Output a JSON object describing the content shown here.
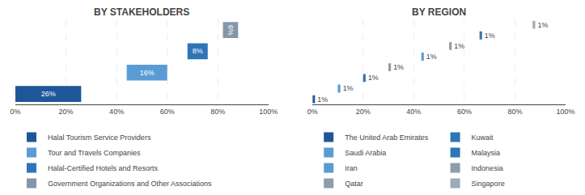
{
  "chart_data": [
    {
      "type": "bar",
      "orientation": "horizontal",
      "title": "BY STAKEHOLDERS",
      "categories": [
        "Halal Tourism Service Providers",
        "Tour and Travels Companies",
        "Halal-Certified Hotels and Resorts",
        "Government Organizations and Other Associations"
      ],
      "values": [
        26,
        16,
        8,
        6
      ],
      "base": [
        0,
        44,
        68,
        82
      ],
      "colors": [
        "#1e5799",
        "#5b9bd5",
        "#2e75b6",
        "#8496a9"
      ],
      "data_labels": true,
      "value_labels": [
        "26%",
        "16%",
        "8%",
        "6%"
      ],
      "legend_entries": [
        "Halal Tourism Service Providers",
        "Tour and Travels Companies",
        "Halal-Certified Hotels and Resorts",
        "Government Organizations and Other Associations"
      ],
      "legend": "bottom",
      "xlim": [
        0,
        100
      ],
      "xticks": [
        {
          "value": 0,
          "label": "0%"
        },
        {
          "value": 20,
          "label": "20%"
        },
        {
          "value": 40,
          "label": "40%"
        },
        {
          "value": 60,
          "label": "60%"
        },
        {
          "value": 80,
          "label": "80%"
        },
        {
          "value": 100,
          "label": "100%"
        }
      ],
      "grid": true,
      "tick_labels": "x"
    },
    {
      "type": "bar",
      "orientation": "horizontal",
      "title": "BY REGION",
      "categories": [
        "The United Arab Emirates",
        "Iran",
        "Kuwait",
        "Indonesia",
        "Saudi Arabia",
        "Qatar",
        "Malaysia",
        "Singapore"
      ],
      "values": [
        1,
        1,
        1,
        1,
        1,
        1,
        1,
        1
      ],
      "base": [
        0,
        10,
        20,
        30,
        43,
        54,
        66,
        87
      ],
      "colors": [
        "#1e5799",
        "#5b9bd5",
        "#2e75b6",
        "#8c9dab",
        "#5b9bd5",
        "#8c9dab",
        "#2e75b6",
        "#9aabb8"
      ],
      "data_labels": true,
      "value_labels": [
        "1%",
        "1%",
        "1%",
        "1%",
        "1%",
        "1%",
        "1%",
        "1%"
      ],
      "legend_entries": [
        "The United Arab Emirates",
        "Saudi Arabia",
        "Iran",
        "Qatar",
        "Kuwait",
        "Malaysia",
        "Indonesia",
        "Singapore"
      ],
      "legend": "bottom",
      "xlim": [
        0,
        100
      ],
      "xticks": [
        {
          "value": 0,
          "label": "0%"
        },
        {
          "value": 20,
          "label": "20%"
        },
        {
          "value": 40,
          "label": "40%"
        },
        {
          "value": 60,
          "label": "60%"
        },
        {
          "value": 80,
          "label": "80%"
        },
        {
          "value": 100,
          "label": "100%"
        }
      ],
      "grid": true,
      "tick_labels": "x"
    }
  ]
}
